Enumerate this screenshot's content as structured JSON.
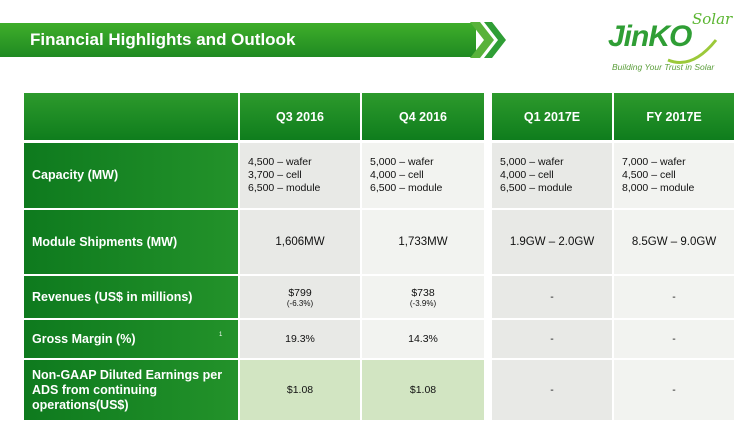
{
  "header": {
    "title": "Financial Highlights and Outlook"
  },
  "logo": {
    "wordmark": "JinKO",
    "script": "Solar",
    "tagline": "Building Your Trust in Solar"
  },
  "columns": [
    "Q3 2016",
    "Q4 2016",
    "Q1 2017E",
    "FY 2017E"
  ],
  "rows": [
    {
      "label": "Capacity (MW)",
      "cells": [
        {
          "lines": [
            "4,500 – wafer",
            "3,700 – cell",
            "6,500 – module"
          ]
        },
        {
          "lines": [
            "5,000 – wafer",
            "4,000 – cell",
            "6,500 – module"
          ]
        },
        {
          "lines": [
            "5,000 – wafer",
            "4,000 – cell",
            "6,500 – module"
          ]
        },
        {
          "lines": [
            "7,000 – wafer",
            "4,500 – cell",
            "8,000 – module"
          ]
        }
      ]
    },
    {
      "label": "Module Shipments (MW)",
      "cells": [
        {
          "value": "1,606MW"
        },
        {
          "value": "1,733MW"
        },
        {
          "value": "1.9GW – 2.0GW"
        },
        {
          "value": "8.5GW – 9.0GW"
        }
      ]
    },
    {
      "label": "Revenues (US$ in millions)",
      "cells": [
        {
          "value": "$799",
          "sub": "(-6.3%)"
        },
        {
          "value": "$738",
          "sub": "(-3.9%)"
        },
        {
          "value": "-"
        },
        {
          "value": "-"
        }
      ]
    },
    {
      "label": "Gross Margin (%)",
      "label_mark": "1",
      "cells": [
        {
          "value": "19.3%"
        },
        {
          "value": "14.3%"
        },
        {
          "value": "-"
        },
        {
          "value": "-"
        }
      ]
    },
    {
      "label": "Non-GAAP Diluted Earnings per ADS from continuing operations(US$)",
      "cells": [
        {
          "value": "$1.08"
        },
        {
          "value": "$1.08"
        },
        {
          "value": "-"
        },
        {
          "value": "-"
        }
      ]
    }
  ]
}
